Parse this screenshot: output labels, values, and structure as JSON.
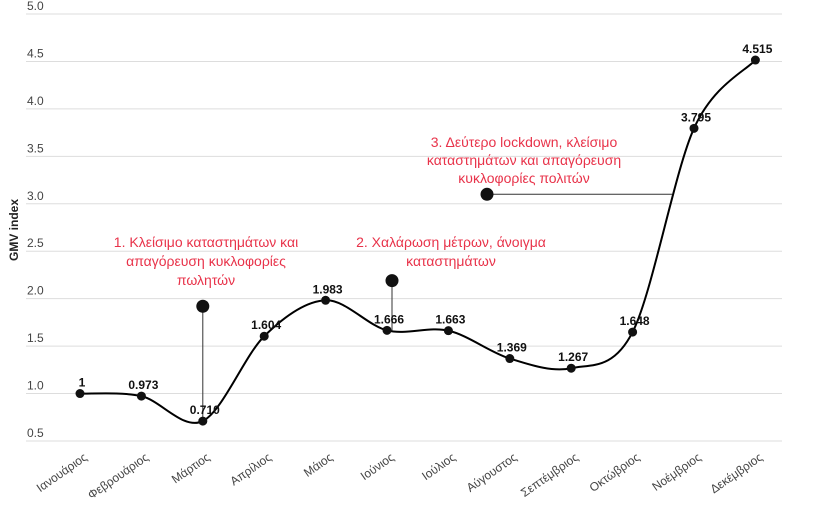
{
  "chart_data": {
    "type": "line",
    "ylabel": "GMV index",
    "xlabel": "",
    "ylim": [
      0.5,
      5.0
    ],
    "yticks": [
      "5.0",
      "4.5",
      "4.0",
      "3.5",
      "3.0",
      "2.5",
      "2.0",
      "1.5",
      "1.0",
      "0.5"
    ],
    "grid": true,
    "categories": [
      "Ιανουάριος",
      "Φεβρουάριος",
      "Μάρτιος",
      "Απρίλιος",
      "Μάιος",
      "Ιούνιος",
      "Ιούλιος",
      "Αύγουστος",
      "Σεπτέμβριος",
      "Οκτώβριος",
      "Νοέμβριος",
      "Δεκέμβριος"
    ],
    "values": [
      1,
      0.973,
      0.71,
      1.604,
      1.983,
      1.666,
      1.663,
      1.369,
      1.267,
      1.648,
      3.795,
      4.515
    ],
    "value_labels": [
      "1",
      "0.973",
      "0.710",
      "1.604",
      "1.983",
      "1.666",
      "1.663",
      "1.369",
      "1.267",
      "1.648",
      "3.795",
      "4.515"
    ],
    "line_color": "#000000",
    "annotation_color": "#e8334a",
    "annotations": [
      {
        "lines": [
          "1. Κλείσιμο καταστημάτων και",
          "απαγόρευση κυκλοφορίες",
          "πωλητών"
        ],
        "month_index": 2,
        "marker_y": 1.92
      },
      {
        "lines": [
          "2. Χαλάρωση μέτρων, άνοιγμα",
          "καταστημάτων"
        ],
        "month_index": 5,
        "marker_y": 2.19
      },
      {
        "lines": [
          "3. Δεύτερο lockdown, κλείσιμο",
          "καταστημάτων και απαγόρευση",
          "κυκλοφορίες πολιτών"
        ],
        "month_index": 10,
        "marker_y": 3.1
      }
    ]
  }
}
